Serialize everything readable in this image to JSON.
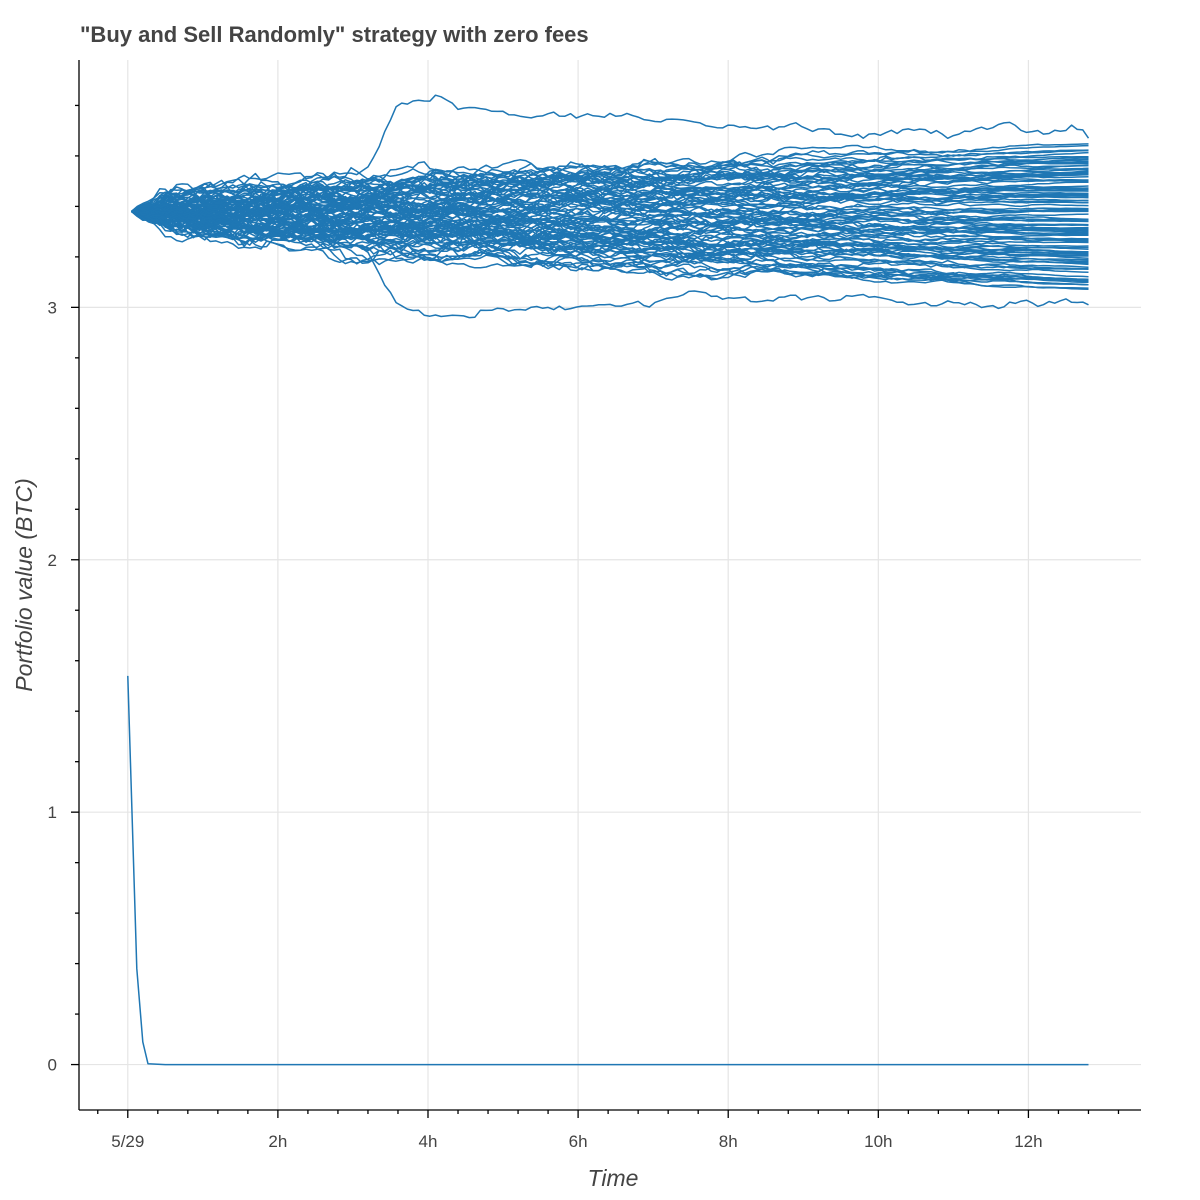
{
  "chart_data": {
    "type": "line",
    "title": "\"Buy and Sell Randomly\" strategy with zero fees",
    "xlabel": "Time",
    "ylabel": "Portfolio value (BTC)",
    "x_ticks": [
      {
        "value": 0,
        "label": "5/29"
      },
      {
        "value": 2,
        "label": "2h"
      },
      {
        "value": 4,
        "label": "4h"
      },
      {
        "value": 6,
        "label": "6h"
      },
      {
        "value": 8,
        "label": "8h"
      },
      {
        "value": 10,
        "label": "10h"
      },
      {
        "value": 12,
        "label": "12h"
      }
    ],
    "x_unit": "hours since 5/29 00:00",
    "xlim": [
      -0.65,
      13.5
    ],
    "ylim": [
      -0.18,
      3.98
    ],
    "y_ticks": [
      0,
      1,
      2,
      3
    ],
    "y_minor_step": 0.2,
    "grid": true,
    "color": "#1f77b4",
    "bundle": {
      "count": 100,
      "start_value": 3.38,
      "x_start": 0.05,
      "x_end": 12.8,
      "final_min": 3.01,
      "final_max": 3.7,
      "outliers": [
        {
          "description": "highest path",
          "peak": 3.78,
          "peak_x": 4.7,
          "final": 3.67
        },
        {
          "description": "lowest path",
          "trough": 3.01,
          "trough_x": 3.5,
          "final": 3.01
        }
      ]
    },
    "series": [
      {
        "name": "",
        "x": [
          0.0,
          0.12,
          0.2,
          0.27,
          0.5,
          1.0,
          2.0,
          4.0,
          6.0,
          8.0,
          10.0,
          12.0,
          12.8
        ],
        "values": [
          1.54,
          0.38,
          0.09,
          0.003,
          0.0,
          0.0,
          0.0,
          0.0,
          0.0,
          0.0,
          0.0,
          0.0,
          0.0
        ]
      }
    ]
  }
}
